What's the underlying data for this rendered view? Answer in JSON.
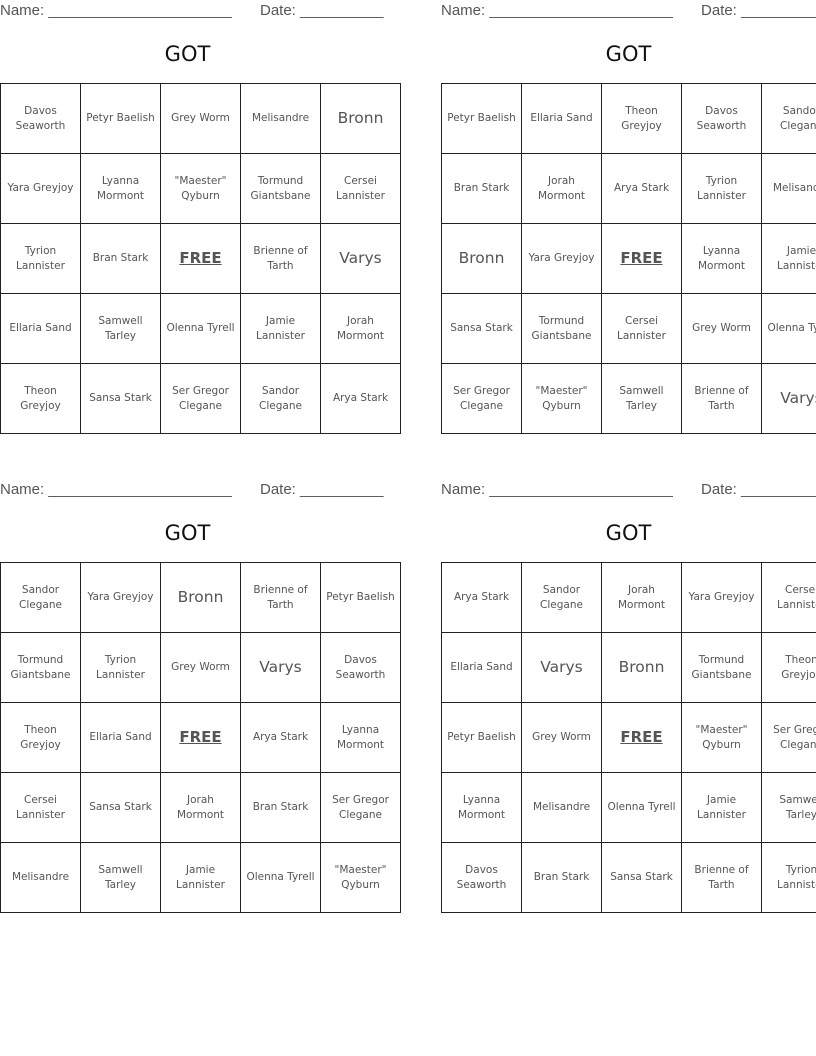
{
  "header": {
    "name_label": "Name: ______________________",
    "date_label": "Date: __________"
  },
  "cards": [
    {
      "title": "GOT",
      "cells": [
        "Davos Seaworth",
        "Petyr Baelish",
        "Grey Worm",
        "Melisandre",
        "Bronn",
        "Yara Greyjoy",
        "Lyanna Mormont",
        "\"Maester\" Qyburn",
        "Tormund Giantsbane",
        "Cersei Lannister",
        "Tyrion Lannister",
        "Bran Stark",
        "FREE",
        "Brienne of Tarth",
        "Varys",
        "Ellaria Sand",
        "Samwell Tarley",
        "Olenna Tyrell",
        "Jamie Lannister",
        "Jorah Mormont",
        "Theon Greyjoy",
        "Sansa Stark",
        "Ser Gregor Clegane",
        "Sandor Clegane",
        "Arya Stark"
      ]
    },
    {
      "title": "GOT",
      "cells": [
        "Petyr Baelish",
        "Ellaria Sand",
        "Theon Greyjoy",
        "Davos Seaworth",
        "Sandor Clegane",
        "Bran Stark",
        "Jorah Mormont",
        "Arya Stark",
        "Tyrion Lannister",
        "Melisandre",
        "Bronn",
        "Yara Greyjoy",
        "FREE",
        "Lyanna Mormont",
        "Jamie Lannister",
        "Sansa Stark",
        "Tormund Giantsbane",
        "Cersei Lannister",
        "Grey Worm",
        "Olenna Tyrell",
        "Ser Gregor Clegane",
        "\"Maester\" Qyburn",
        "Samwell Tarley",
        "Brienne of Tarth",
        "Varys"
      ]
    },
    {
      "title": "GOT",
      "cells": [
        "Sandor Clegane",
        "Yara Greyjoy",
        "Bronn",
        "Brienne of Tarth",
        "Petyr Baelish",
        "Tormund Giantsbane",
        "Tyrion Lannister",
        "Grey Worm",
        "Varys",
        "Davos Seaworth",
        "Theon Greyjoy",
        "Ellaria Sand",
        "FREE",
        "Arya Stark",
        "Lyanna Mormont",
        "Cersei Lannister",
        "Sansa Stark",
        "Jorah Mormont",
        "Bran Stark",
        "Ser Gregor Clegane",
        "Melisandre",
        "Samwell Tarley",
        "Jamie Lannister",
        "Olenna Tyrell",
        "\"Maester\" Qyburn"
      ]
    },
    {
      "title": "GOT",
      "cells": [
        "Arya Stark",
        "Sandor Clegane",
        "Jorah Mormont",
        "Yara Greyjoy",
        "Cersei Lannister",
        "Ellaria Sand",
        "Varys",
        "Bronn",
        "Tormund Giantsbane",
        "Theon Greyjoy",
        "Petyr Baelish",
        "Grey Worm",
        "FREE",
        "\"Maester\" Qyburn",
        "Ser Gregor Clegane",
        "Lyanna Mormont",
        "Melisandre",
        "Olenna Tyrell",
        "Jamie Lannister",
        "Samwell Tarley",
        "Davos Seaworth",
        "Bran Stark",
        "Sansa Stark",
        "Brienne of Tarth",
        "Tyrion Lannister"
      ]
    }
  ]
}
